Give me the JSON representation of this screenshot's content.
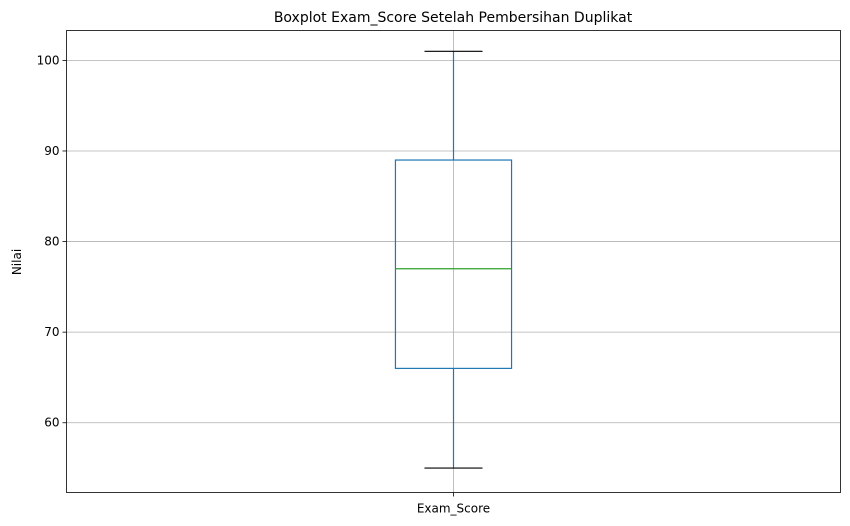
{
  "chart_data": {
    "type": "box",
    "title": "Boxplot Exam_Score Setelah Pembersihan Duplikat",
    "xlabel": "",
    "ylabel": "Nilai",
    "categories": [
      "Exam_Score"
    ],
    "boxes": [
      {
        "name": "Exam_Score",
        "whisker_low": 55,
        "q1": 66,
        "median": 77,
        "q3": 89,
        "whisker_high": 101
      }
    ],
    "ylim": [
      52.3,
      103.3
    ],
    "yticks": [
      60,
      70,
      80,
      90,
      100
    ],
    "grid": true,
    "colors": {
      "box": "#1f77b4",
      "whisker": "#1f77b4",
      "cap": "#000000",
      "median": "#2ca02c",
      "grid": "#b0b0b0"
    }
  }
}
